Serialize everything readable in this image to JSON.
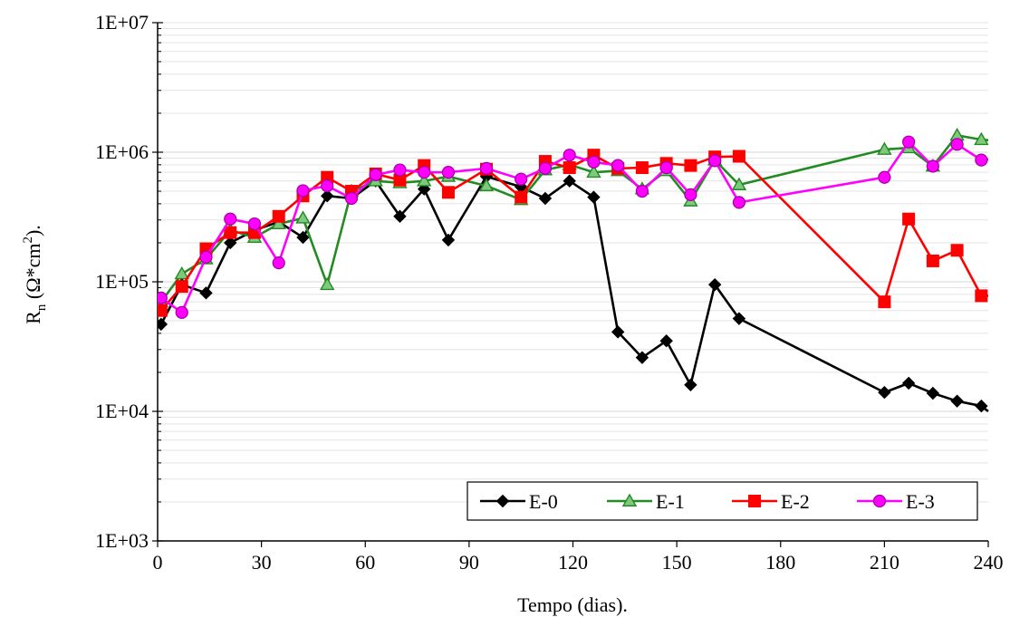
{
  "chart_data": {
    "type": "line",
    "xlabel": "Tempo (dias).",
    "ylabel": {
      "main": "R",
      "sub": "n",
      "rest": " (Ω*cm",
      "sup": "2",
      "end": ")."
    },
    "xlim": [
      0,
      240
    ],
    "ylim": [
      1000,
      10000000
    ],
    "yscale": "log",
    "xticks": [
      0,
      30,
      60,
      90,
      120,
      150,
      180,
      210,
      240
    ],
    "xtick_labels": [
      "0",
      "30",
      "60",
      "90",
      "120",
      "150",
      "180",
      "210",
      "240"
    ],
    "yticks": [
      1000,
      10000,
      100000,
      1000000,
      10000000
    ],
    "ytick_labels": [
      "1E+03",
      "1E+04",
      "1E+05",
      "1E+06",
      "1E+07"
    ],
    "grid": "horizontal-minor",
    "legend_position": "bottom-right",
    "series": [
      {
        "name": "E-0",
        "color": "#000000",
        "marker": "diamond",
        "points": [
          [
            1,
            47000
          ],
          [
            7,
            95000
          ],
          [
            14,
            82000
          ],
          [
            21,
            200000
          ],
          [
            28,
            250000
          ],
          [
            35,
            290000
          ],
          [
            42,
            220000
          ],
          [
            49,
            460000
          ],
          [
            56,
            440000
          ],
          [
            63,
            600000
          ],
          [
            70,
            320000
          ],
          [
            77,
            520000
          ],
          [
            84,
            210000
          ],
          [
            95,
            650000
          ],
          [
            105,
            540000
          ],
          [
            112,
            440000
          ],
          [
            119,
            600000
          ],
          [
            126,
            450000
          ],
          [
            133,
            41000
          ],
          [
            140,
            26000
          ],
          [
            147,
            35000
          ],
          [
            154,
            16000
          ],
          [
            161,
            95000
          ],
          [
            168,
            52000
          ],
          [
            210,
            14000
          ],
          [
            217,
            16500
          ],
          [
            224,
            13800
          ],
          [
            231,
            12000
          ],
          [
            238,
            11000
          ],
          [
            240,
            10000
          ]
        ]
      },
      {
        "name": "E-1",
        "color": "#228b22",
        "marker": "triangle",
        "points": [
          [
            1,
            70000
          ],
          [
            7,
            115000
          ],
          [
            14,
            150000
          ],
          [
            21,
            250000
          ],
          [
            28,
            220000
          ],
          [
            35,
            280000
          ],
          [
            42,
            310000
          ],
          [
            49,
            95000
          ],
          [
            56,
            500000
          ],
          [
            63,
            600000
          ],
          [
            70,
            580000
          ],
          [
            77,
            600000
          ],
          [
            84,
            650000
          ],
          [
            95,
            550000
          ],
          [
            105,
            430000
          ],
          [
            112,
            730000
          ],
          [
            119,
            800000
          ],
          [
            126,
            700000
          ],
          [
            133,
            720000
          ],
          [
            140,
            520000
          ],
          [
            147,
            720000
          ],
          [
            154,
            420000
          ],
          [
            161,
            870000
          ],
          [
            168,
            560000
          ],
          [
            210,
            1050000
          ],
          [
            217,
            1080000
          ],
          [
            224,
            780000
          ],
          [
            231,
            1350000
          ],
          [
            238,
            1250000
          ],
          [
            240,
            1240000
          ]
        ]
      },
      {
        "name": "E-2",
        "color": "#ff0000",
        "marker": "square",
        "points": [
          [
            1,
            60000
          ],
          [
            7,
            92000
          ],
          [
            14,
            180000
          ],
          [
            21,
            240000
          ],
          [
            28,
            240000
          ],
          [
            35,
            320000
          ],
          [
            42,
            460000
          ],
          [
            49,
            640000
          ],
          [
            56,
            500000
          ],
          [
            63,
            680000
          ],
          [
            70,
            610000
          ],
          [
            77,
            790000
          ],
          [
            84,
            490000
          ],
          [
            95,
            740000
          ],
          [
            105,
            450000
          ],
          [
            112,
            850000
          ],
          [
            119,
            760000
          ],
          [
            126,
            950000
          ],
          [
            133,
            750000
          ],
          [
            140,
            760000
          ],
          [
            147,
            820000
          ],
          [
            154,
            790000
          ],
          [
            161,
            920000
          ],
          [
            168,
            930000
          ],
          [
            210,
            70000
          ],
          [
            217,
            305000
          ],
          [
            224,
            145000
          ],
          [
            231,
            175000
          ],
          [
            238,
            78000
          ],
          [
            240,
            78000
          ]
        ]
      },
      {
        "name": "E-3",
        "color": "#ff00ff",
        "marker": "circle",
        "points": [
          [
            1,
            75000
          ],
          [
            7,
            58000
          ],
          [
            14,
            155000
          ],
          [
            21,
            305000
          ],
          [
            28,
            280000
          ],
          [
            35,
            140000
          ],
          [
            42,
            505000
          ],
          [
            49,
            550000
          ],
          [
            56,
            440000
          ],
          [
            63,
            670000
          ],
          [
            70,
            730000
          ],
          [
            77,
            700000
          ],
          [
            84,
            700000
          ],
          [
            95,
            750000
          ],
          [
            105,
            620000
          ],
          [
            112,
            750000
          ],
          [
            119,
            950000
          ],
          [
            126,
            840000
          ],
          [
            133,
            790000
          ],
          [
            140,
            500000
          ],
          [
            147,
            760000
          ],
          [
            154,
            470000
          ],
          [
            161,
            860000
          ],
          [
            168,
            410000
          ],
          [
            210,
            640000
          ],
          [
            217,
            1200000
          ],
          [
            224,
            780000
          ],
          [
            231,
            1150000
          ],
          [
            238,
            870000
          ],
          [
            240,
            880000
          ]
        ]
      }
    ]
  }
}
